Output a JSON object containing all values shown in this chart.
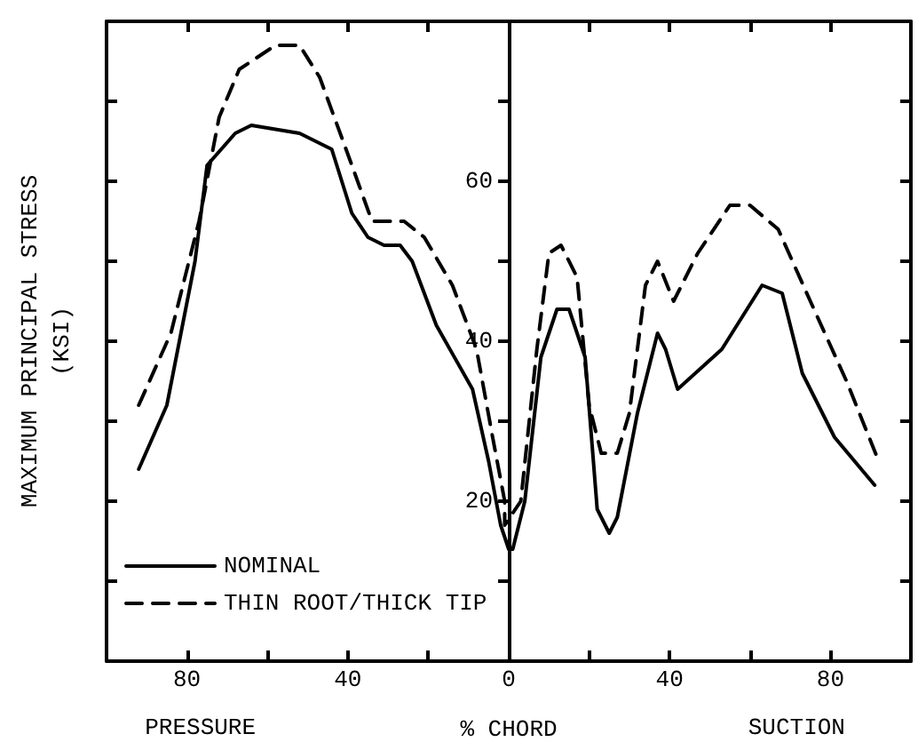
{
  "chart_data": {
    "type": "line",
    "xlabel": "% CHORD",
    "ylabel": "MAXIMUM PRINCIPAL STRESS\n(KSI)",
    "annotations": [
      "PRESSURE",
      "SUCTION"
    ],
    "xlim": [
      -100,
      100
    ],
    "xticks": [
      {
        "value": -80,
        "label": "80"
      },
      {
        "value": -60,
        "label": null
      },
      {
        "value": -40,
        "label": "40"
      },
      {
        "value": -20,
        "label": null
      },
      0,
      {
        "value": 20,
        "label": null
      },
      40,
      {
        "value": 60,
        "label": null
      },
      80
    ],
    "ylim": [
      0,
      80
    ],
    "yticks": [
      {
        "value": 10,
        "label": null
      },
      20,
      {
        "value": 30,
        "label": null
      },
      40,
      {
        "value": 50,
        "label": null
      },
      60,
      {
        "value": 70,
        "label": null
      }
    ],
    "legend": "bottom left",
    "grid": false,
    "series": [
      {
        "name": "NOMINAL",
        "color": "#000000",
        "line_style": "solid",
        "x": [
          -92,
          -85,
          -78,
          -75,
          -68,
          -64,
          -52,
          -44,
          -39,
          -35,
          -31,
          -27,
          -24,
          -18,
          -9,
          -5,
          -2,
          0,
          1,
          4,
          8,
          12,
          15,
          19,
          22,
          25,
          27,
          32,
          37,
          39,
          42,
          53,
          63,
          68,
          73,
          81,
          91
        ],
        "values": [
          24,
          32,
          50,
          62,
          66,
          67,
          66,
          64,
          56,
          53,
          52,
          52,
          50,
          42,
          34,
          25,
          17,
          14,
          14,
          20,
          38,
          44,
          44,
          38,
          19,
          16,
          18,
          31,
          41,
          39,
          34,
          39,
          47,
          46,
          36,
          28,
          22
        ]
      },
      {
        "name": "THIN ROOT/THICK TIP",
        "color": "#000000",
        "line_style": "dashed",
        "x": [
          -92,
          -84,
          -77,
          -72,
          -67,
          -58,
          -52,
          -47,
          -39,
          -34,
          -26,
          -21,
          -14,
          -8,
          -4,
          -1,
          -1,
          3,
          7,
          10,
          13,
          17,
          20,
          23,
          27,
          30,
          34,
          37,
          41,
          47,
          55,
          60,
          67,
          75,
          84,
          92
        ],
        "values": [
          32,
          41,
          55,
          68,
          74,
          77,
          77,
          73,
          62,
          55,
          55,
          53,
          47,
          39,
          28,
          20,
          17,
          20,
          39,
          51,
          52,
          48,
          32,
          26,
          26,
          31,
          47,
          50,
          45,
          51,
          57,
          57,
          54,
          45,
          35,
          25
        ]
      }
    ]
  }
}
